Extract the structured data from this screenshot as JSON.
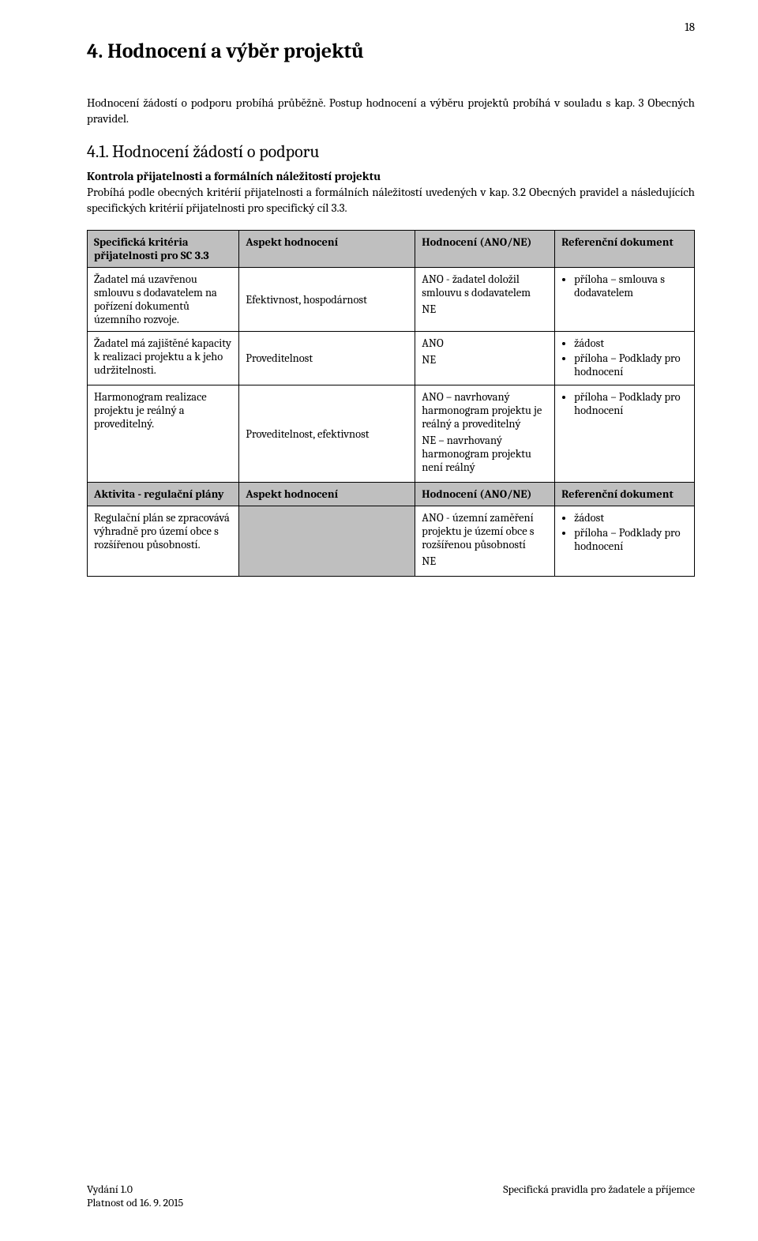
{
  "page_number": "18",
  "heading_section": "4. Hodnocení a výběr projektů",
  "intro_para": "Hodnocení žádostí o podporu probíhá průběžně. Postup hodnocení a výběru projektů probíhá v souladu s kap. 3 Obecných pravidel.",
  "subheading": "4.1.   Hodnocení žádostí o podporu",
  "subheading_bold_line": "Kontrola přijatelnosti a formálních náležitostí projektu",
  "subheading_body": "Probíhá podle obecných kritérií přijatelnosti a formálních náležitostí uvedených v kap. 3.2 Obecných pravidel a následujících specifických kritérií přijatelnosti pro specifický cíl 3.3.",
  "table": {
    "col_widths": [
      "25%",
      "29%",
      "23%",
      "23%"
    ],
    "header1": {
      "c1": "Specifická kritéria přijatelnosti pro SC 3.3",
      "c2": "Aspekt hodnocení",
      "c3": "Hodnocení (ANO/NE)",
      "c4": "Referenční dokument"
    },
    "rows1": [
      {
        "c1": "Žadatel má uzavřenou smlouvu s dodavatelem na pořízení dokumentů územního rozvoje.",
        "c2": "Efektivnost, hospodárnost",
        "c3_lines": [
          "ANO - žadatel doložil smlouvu s dodavatelem",
          "NE"
        ],
        "c4_items": [
          "příloha – smlouva s dodavatelem"
        ]
      },
      {
        "c1": "Žadatel má zajištěné kapacity k realizaci projektu a k jeho udržitelnosti.",
        "c2": "Proveditelnost",
        "c3_lines": [
          "ANO",
          "NE"
        ],
        "c4_items": [
          "žádost",
          "příloha – Podklady pro hodnocení"
        ]
      },
      {
        "c1": "Harmonogram realizace projektu je reálný a proveditelný.",
        "c2": "Proveditelnost, efektivnost",
        "c3_lines": [
          "ANO – navrhovaný harmonogram projektu je reálný a proveditelný",
          "NE – navrhovaný harmonogram projektu není reálný"
        ],
        "c4_items": [
          "příloha – Podklady pro hodnocení"
        ]
      }
    ],
    "header2": {
      "c1": "Aktivita  - regulační plány",
      "c2": "Aspekt hodnocení",
      "c3": "Hodnocení (ANO/NE)",
      "c4": "Referenční dokument"
    },
    "rows2": [
      {
        "c1": "Regulační plán se zpracovává výhradně pro území obce s rozšířenou působností.",
        "c2": "",
        "c3_lines": [
          "ANO - územní zaměření projektu je území obce s rozšířenou působností",
          "NE"
        ],
        "c4_items": [
          "žádost",
          "příloha – Podklady pro hodnocení"
        ]
      }
    ]
  },
  "footer": {
    "left_line1": "Vydání 1.0",
    "left_line2": "Platnost od 16. 9. 2015",
    "right": "Specifická pravidla pro žadatele a příjemce"
  }
}
